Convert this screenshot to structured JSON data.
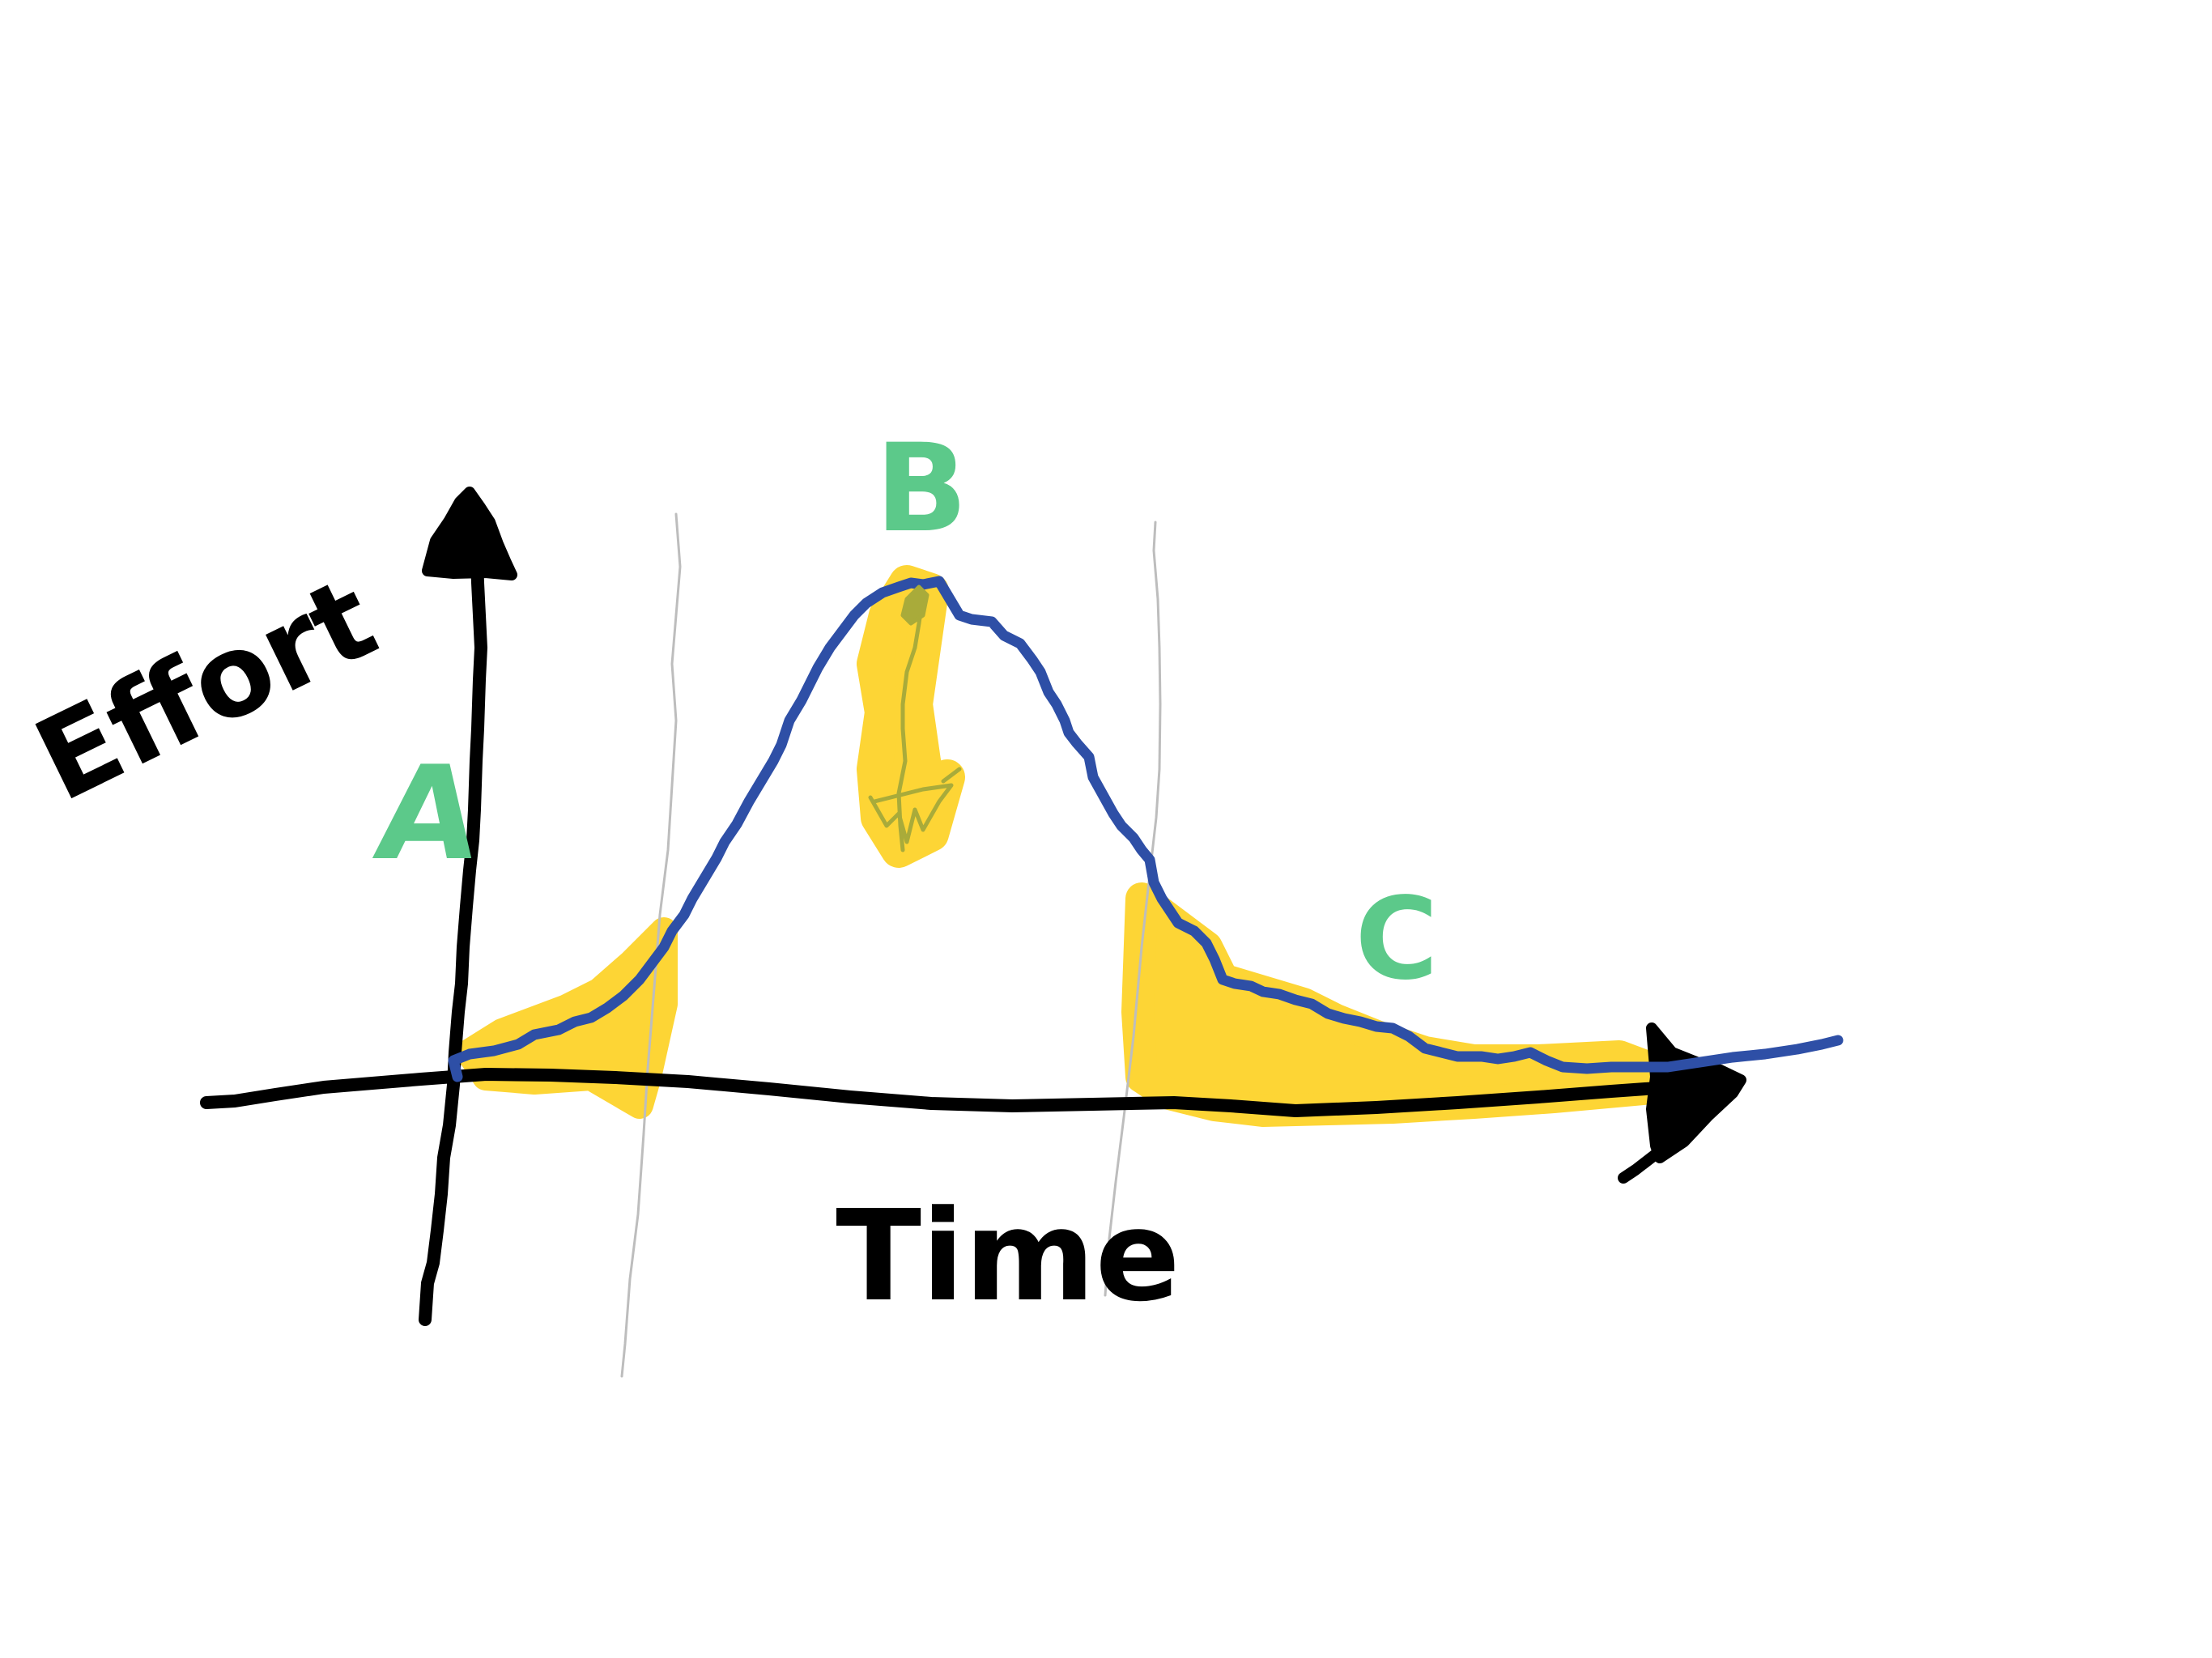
{
  "axes": {
    "y_label": "Effort",
    "x_label": "Time"
  },
  "phases": [
    {
      "label": "A"
    },
    {
      "label": "B"
    },
    {
      "label": "C"
    }
  ],
  "colors": {
    "ink": "#000000",
    "curve": "#2e4fa6",
    "highlight": "#fdd535",
    "label": "#5cc98a",
    "divider": "#bdbdbd",
    "background": "#ffffff"
  }
}
